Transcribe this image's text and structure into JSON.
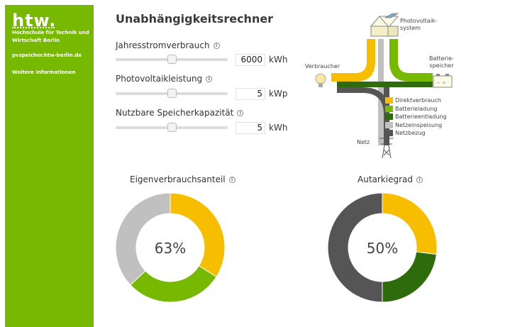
{
  "sidebar": {
    "logo": "htw.",
    "school": "Hochschule für Technik und Wirtschaft Berlin",
    "link": "pvspeicher.htw-berlin.de",
    "more": "Weitere Informationen",
    "color": "#76b900"
  },
  "page": {
    "title": "Unabhängigkeitsrechner"
  },
  "controls": [
    {
      "label": "Jahresstromverbrauch",
      "value": "6000",
      "unit": "kWh",
      "slider_fraction": 0.5
    },
    {
      "label": "Photovoltaikleistung",
      "value": "5",
      "unit": "kWp",
      "slider_fraction": 0.5
    },
    {
      "label": "Nutzbare Speicherkapazität",
      "value": "5",
      "unit": "kWh",
      "slider_fraction": 0.5
    }
  ],
  "diagram": {
    "pv_label_1": "Photovoltaik-",
    "pv_label_2": "system",
    "battery_label_1": "Batterie-",
    "battery_label_2": "speicher",
    "consumer_label": "Verbraucher",
    "grid_label": "Netz",
    "icons": [
      "house-solar-icon",
      "battery-icon",
      "lightbulb-icon",
      "power-pylon-icon"
    ]
  },
  "legend": [
    {
      "label": "Direktverbrauch",
      "color": "#f7be00"
    },
    {
      "label": "Batterieladung",
      "color": "#76b900"
    },
    {
      "label": "Batterieentladung",
      "color": "#2e6b0c"
    },
    {
      "label": "Netzeinspeisung",
      "color": "#c0c0c0"
    },
    {
      "label": "Netzbezug",
      "color": "#555555"
    }
  ],
  "charts": {
    "self_consumption": {
      "title": "Eigenverbrauchsanteil",
      "value_text": "63%"
    },
    "autarky": {
      "title": "Autarkiegrad",
      "value_text": "50%"
    }
  },
  "chart_data": [
    {
      "type": "pie",
      "title": "Eigenverbrauchsanteil",
      "center_text": "63%",
      "segments": [
        {
          "name": "Direktverbrauch",
          "value": 34,
          "color": "#f7be00"
        },
        {
          "name": "Batterieladung",
          "value": 29,
          "color": "#76b900"
        },
        {
          "name": "Netzeinspeisung",
          "value": 37,
          "color": "#c0c0c0"
        }
      ]
    },
    {
      "type": "pie",
      "title": "Autarkiegrad",
      "center_text": "50%",
      "segments": [
        {
          "name": "Direktverbrauch",
          "value": 27,
          "color": "#f7be00"
        },
        {
          "name": "Batterieentladung",
          "value": 23,
          "color": "#2e6b0c"
        },
        {
          "name": "Netzbezug",
          "value": 50,
          "color": "#555555"
        }
      ]
    }
  ]
}
